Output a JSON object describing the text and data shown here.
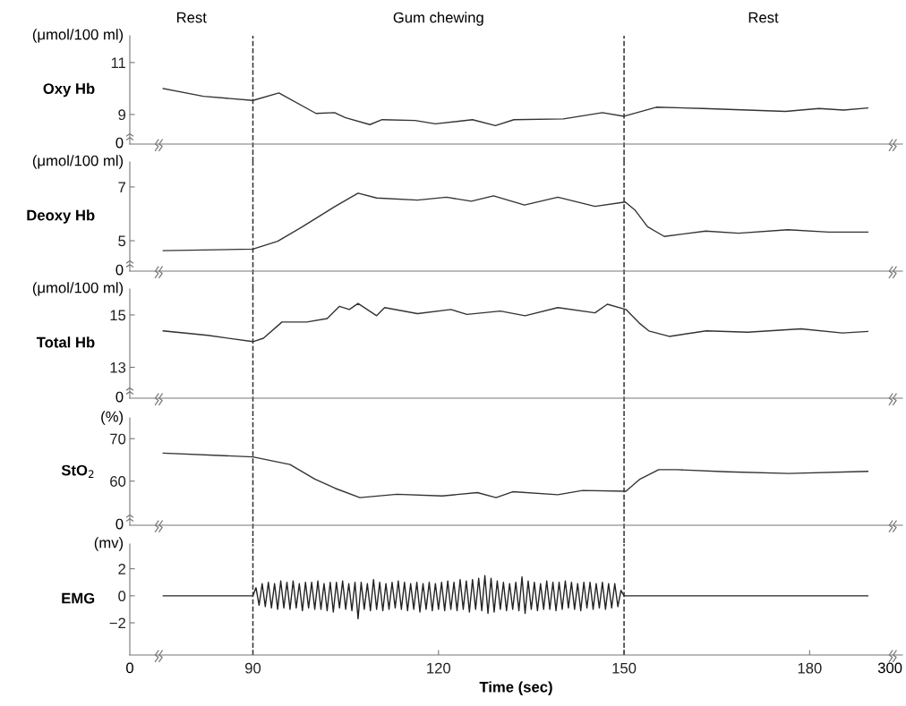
{
  "chart_data": [
    {
      "type": "line",
      "ylabel": "Oxy Hb",
      "xlim": [
        70.1,
        195
      ],
      "ylim": [
        7.86,
        12.03
      ],
      "yticks": [
        9,
        11
      ],
      "tick_labels": "y",
      "line_style": "solid",
      "annotations": [
        "(μmol/100 ml)",
        "0",
        "Rest",
        "Gum chewing",
        "Rest"
      ],
      "ref_lines": [
        {
          "axis": "x",
          "value": 90,
          "color": "#333333",
          "line_style": "dashed"
        },
        {
          "axis": "x",
          "value": 150,
          "color": "#333333",
          "line_style": "dashed"
        }
      ],
      "series": [
        {
          "color": "#333333",
          "x": [
            75.5,
            82,
            90,
            94.2,
            100.2,
            103.2,
            104.9,
            108.9,
            110.9,
            116.2,
            119.5,
            125.5,
            129.2,
            132.2,
            140.2,
            146.5,
            150,
            155.2,
            162.8,
            176.1,
            181.5,
            185.5,
            189.4
          ],
          "values": [
            10.0,
            9.7,
            9.54,
            9.83,
            9.04,
            9.07,
            8.88,
            8.61,
            8.8,
            8.77,
            8.64,
            8.8,
            8.57,
            8.8,
            8.83,
            9.07,
            8.93,
            9.28,
            9.23,
            9.12,
            9.23,
            9.17,
            9.25
          ]
        }
      ]
    },
    {
      "type": "line",
      "ylabel": "Deoxy Hb",
      "xlim": [
        70.1,
        195
      ],
      "ylim": [
        3.87,
        7.93
      ],
      "yticks": [
        5,
        7
      ],
      "tick_labels": "y",
      "line_style": "solid",
      "annotations": [
        "(μmol/100 ml)",
        "0"
      ],
      "ref_lines": [
        {
          "axis": "x",
          "value": 90,
          "color": "#333333",
          "line_style": "dashed"
        },
        {
          "axis": "x",
          "value": 150,
          "color": "#333333",
          "line_style": "dashed"
        }
      ],
      "series": [
        {
          "color": "#333333",
          "x": [
            75.5,
            90,
            94,
            98,
            103.3,
            107,
            110,
            116.6,
            121.3,
            125.3,
            128.9,
            133.9,
            139.3,
            145.3,
            150.2,
            151.8,
            153.8,
            156.5,
            163.2,
            168.5,
            176.5,
            183.1,
            189.4
          ],
          "values": [
            4.63,
            4.69,
            4.98,
            5.52,
            6.28,
            6.77,
            6.59,
            6.51,
            6.62,
            6.47,
            6.67,
            6.33,
            6.62,
            6.28,
            6.44,
            6.13,
            5.52,
            5.16,
            5.36,
            5.28,
            5.41,
            5.32,
            5.32
          ]
        }
      ]
    },
    {
      "type": "line",
      "ylabel": "Total Hb",
      "xlim": [
        70.1,
        195
      ],
      "ylim": [
        11.82,
        15.99
      ],
      "yticks": [
        13,
        15
      ],
      "tick_labels": "y",
      "line_style": "solid",
      "annotations": [
        "(μmol/100 ml)",
        "0"
      ],
      "ref_lines": [
        {
          "axis": "x",
          "value": 90,
          "color": "#333333",
          "line_style": "dashed"
        },
        {
          "axis": "x",
          "value": 150,
          "color": "#333333",
          "line_style": "dashed"
        }
      ],
      "series": [
        {
          "color": "#333333",
          "x": [
            75.5,
            82.7,
            90,
            91.7,
            94.7,
            98.7,
            102,
            104,
            105.6,
            107,
            110,
            111.3,
            116.6,
            122,
            124.6,
            130,
            134,
            139.3,
            145.3,
            147.3,
            150.3,
            152.6,
            154,
            157.3,
            163.3,
            170,
            178.6,
            185.3,
            189.4
          ],
          "values": [
            14.39,
            14.22,
            13.98,
            14.11,
            14.73,
            14.73,
            14.86,
            15.33,
            15.21,
            15.44,
            14.97,
            15.28,
            15.05,
            15.21,
            15.02,
            15.15,
            14.97,
            15.28,
            15.08,
            15.41,
            15.21,
            14.66,
            14.39,
            14.18,
            14.39,
            14.34,
            14.47,
            14.31,
            14.37
          ]
        }
      ]
    },
    {
      "type": "line",
      "ylabel": "StO$_{2}$",
      "xlim": [
        70.1,
        195
      ],
      "ylim": [
        49.6,
        74.9
      ],
      "yticks": [
        60,
        70
      ],
      "tick_labels": "y",
      "line_style": "solid",
      "annotations": [
        "(%)",
        "0"
      ],
      "ref_lines": [
        {
          "axis": "x",
          "value": 90,
          "color": "#333333",
          "line_style": "dashed"
        },
        {
          "axis": "x",
          "value": 150,
          "color": "#333333",
          "line_style": "dashed"
        }
      ],
      "series": [
        {
          "color": "#333333",
          "x": [
            75.5,
            90,
            96,
            100,
            103.3,
            107.3,
            113.3,
            120.6,
            126.3,
            129.3,
            132,
            139.3,
            143.3,
            150.3,
            152.6,
            155.6,
            158.6,
            166.6,
            176.6,
            189.4
          ],
          "values": [
            66.6,
            65.7,
            63.9,
            60.5,
            58.3,
            56.1,
            56.9,
            56.5,
            57.3,
            56.1,
            57.5,
            56.8,
            57.8,
            57.6,
            60.5,
            62.7,
            62.7,
            62.2,
            61.8,
            62.3
          ]
        }
      ]
    },
    {
      "type": "line",
      "ylabel": "EMG",
      "xlabel": "Time (sec)",
      "xlim": [
        70.1,
        195
      ],
      "ylim": [
        -4.38,
        3.83
      ],
      "yticks": [
        {
          "value": -2,
          "label": "−2"
        },
        0,
        2
      ],
      "xticks": [
        90,
        120,
        150,
        180
      ],
      "line_style": "solid",
      "annotations": [
        "(mv)",
        "0",
        "300"
      ],
      "ref_lines": [
        {
          "axis": "x",
          "value": 90,
          "color": "#333333",
          "line_style": "dashed"
        },
        {
          "axis": "x",
          "value": 150,
          "color": "#333333",
          "line_style": "dashed"
        }
      ],
      "series": [
        {
          "color": "#222222",
          "x": [
            75.5,
            90,
            90.5,
            91,
            91.5,
            92,
            92.5,
            93,
            93.5,
            94,
            94.5,
            95,
            95.5,
            96,
            96.5,
            97,
            97.5,
            98,
            98.5,
            99,
            99.5,
            100,
            100.5,
            101,
            101.5,
            102,
            102.5,
            103,
            103.5,
            104,
            104.5,
            105,
            105.5,
            106,
            106.5,
            107,
            107.5,
            108,
            108.5,
            109,
            109.5,
            110,
            110.5,
            111,
            111.5,
            112,
            112.5,
            113,
            113.5,
            114,
            114.5,
            115,
            115.5,
            116,
            116.5,
            117,
            117.5,
            118,
            118.5,
            119,
            119.5,
            120,
            120.5,
            121,
            121.5,
            122,
            122.5,
            123,
            123.5,
            124,
            124.5,
            125,
            125.5,
            126,
            126.5,
            127,
            127.5,
            128,
            128.5,
            129,
            129.5,
            130,
            130.5,
            131,
            131.5,
            132,
            132.5,
            133,
            133.5,
            134,
            134.5,
            135,
            135.5,
            136,
            136.5,
            137,
            137.5,
            138,
            138.5,
            139,
            139.5,
            140,
            140.5,
            141,
            141.5,
            142,
            142.5,
            143,
            143.5,
            144,
            144.5,
            145,
            145.5,
            146,
            146.5,
            147,
            147.5,
            148,
            148.5,
            149,
            149.5,
            150,
            189.4
          ],
          "values": [
            0,
            0,
            0.6,
            -0.7,
            0.9,
            -0.8,
            1.0,
            -0.9,
            0.9,
            -1.0,
            1.1,
            -0.9,
            1.0,
            -1.0,
            1.1,
            -0.9,
            0.9,
            -1.1,
            1.0,
            -0.9,
            1.0,
            -1.0,
            1.1,
            -1.0,
            0.9,
            -1.1,
            1.0,
            -1.2,
            1.0,
            -0.9,
            1.1,
            -1.0,
            0.9,
            -1.1,
            1.0,
            -1.7,
            1.0,
            -1.0,
            0.9,
            -1.1,
            1.2,
            -1.0,
            1.0,
            -1.1,
            0.9,
            -1.0,
            1.0,
            -0.9,
            1.1,
            -1.0,
            1.0,
            -1.1,
            0.9,
            -1.0,
            1.0,
            -1.2,
            0.9,
            -1.0,
            1.0,
            -1.1,
            0.9,
            -1.0,
            1.0,
            -1.1,
            1.1,
            -1.0,
            1.0,
            -1.1,
            1.2,
            -1.0,
            1.1,
            -1.2,
            1.2,
            -1.0,
            1.3,
            -1.1,
            1.5,
            -1.3,
            1.3,
            -1.2,
            1.1,
            -1.0,
            1.0,
            -1.1,
            0.9,
            -1.0,
            1.0,
            -1.1,
            1.4,
            -1.3,
            1.1,
            -1.0,
            1.0,
            -1.1,
            0.9,
            -1.0,
            1.1,
            -1.0,
            1.0,
            -1.1,
            1.0,
            -1.0,
            1.1,
            -0.9,
            1.0,
            -1.0,
            0.9,
            -1.1,
            1.0,
            -0.9,
            1.0,
            -1.0,
            0.9,
            -0.9,
            1.0,
            -1.0,
            0.9,
            -0.9,
            0.9,
            -0.8,
            0.4,
            0,
            0
          ]
        }
      ]
    }
  ]
}
